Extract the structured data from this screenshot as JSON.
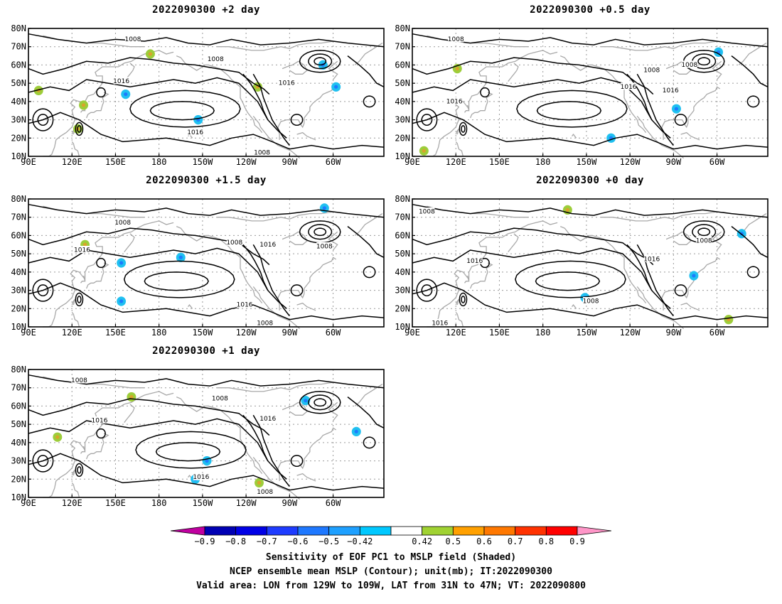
{
  "panels": [
    {
      "title": "2022090300 +2 day",
      "contour_labels": [
        "1008",
        "1008",
        "1016",
        "1016",
        "1016",
        "1008"
      ],
      "anomalies": [
        {
          "lon": 128,
          "lat": 38,
          "sign": "pos"
        },
        {
          "lon": 174,
          "lat": 66,
          "sign": "pos"
        },
        {
          "lon": 124,
          "lat": 25,
          "sign": "pos"
        },
        {
          "lon": 97,
          "lat": 46,
          "sign": "pos"
        },
        {
          "lon": 248,
          "lat": 48,
          "sign": "pos"
        },
        {
          "lon": 293,
          "lat": 60,
          "sign": "neg"
        },
        {
          "lon": 207,
          "lat": 30,
          "sign": "neg"
        },
        {
          "lon": 157,
          "lat": 44,
          "sign": "neg"
        },
        {
          "lon": 302,
          "lat": 48,
          "sign": "neg"
        }
      ]
    },
    {
      "title": "2022090300 +0.5 day",
      "contour_labels": [
        "1008",
        "1008",
        "1016",
        "1016",
        "1008",
        "1016"
      ],
      "anomalies": [
        {
          "lon": 98,
          "lat": 13,
          "sign": "pos"
        },
        {
          "lon": 227,
          "lat": 20,
          "sign": "neg"
        },
        {
          "lon": 301,
          "lat": 67,
          "sign": "neg"
        },
        {
          "lon": 272,
          "lat": 36,
          "sign": "neg"
        },
        {
          "lon": 121,
          "lat": 58,
          "sign": "pos"
        }
      ]
    },
    {
      "title": "2022090300 +1.5 day",
      "contour_labels": [
        "1008",
        "1008",
        "1016",
        "1016",
        "1016",
        "1008",
        "1008"
      ],
      "anomalies": [
        {
          "lon": 294,
          "lat": 75,
          "sign": "neg"
        },
        {
          "lon": 195,
          "lat": 48,
          "sign": "neg"
        },
        {
          "lon": 154,
          "lat": 45,
          "sign": "neg"
        },
        {
          "lon": 154,
          "lat": 24,
          "sign": "neg"
        },
        {
          "lon": 129,
          "lat": 55,
          "sign": "pos"
        }
      ]
    },
    {
      "title": "2022090300 +0 day",
      "contour_labels": [
        "1008",
        "1008",
        "1016",
        "1016",
        "1008",
        "1016"
      ],
      "anomalies": [
        {
          "lon": 197,
          "lat": 74,
          "sign": "pos"
        },
        {
          "lon": 308,
          "lat": 14,
          "sign": "pos"
        },
        {
          "lon": 317,
          "lat": 61,
          "sign": "neg"
        },
        {
          "lon": 209,
          "lat": 26,
          "sign": "neg"
        },
        {
          "lon": 284,
          "lat": 38,
          "sign": "neg"
        }
      ]
    },
    {
      "title": "2022090300 +1 day",
      "contour_labels": [
        "1008",
        "1008",
        "1016",
        "1016",
        "1016",
        "1008"
      ],
      "anomalies": [
        {
          "lon": 110,
          "lat": 43,
          "sign": "pos"
        },
        {
          "lon": 161,
          "lat": 65,
          "sign": "pos"
        },
        {
          "lon": 213,
          "lat": 30,
          "sign": "neg"
        },
        {
          "lon": 205,
          "lat": 20,
          "sign": "neg"
        },
        {
          "lon": 281,
          "lat": 63,
          "sign": "neg"
        },
        {
          "lon": 249,
          "lat": 18,
          "sign": "pos"
        },
        {
          "lon": 316,
          "lat": 46,
          "sign": "neg"
        }
      ]
    }
  ],
  "axes": {
    "lon_labels": [
      "90E",
      "120E",
      "150E",
      "180",
      "150W",
      "120W",
      "90W",
      "60W"
    ],
    "lat_labels": [
      "80N",
      "70N",
      "60N",
      "50N",
      "40N",
      "30N",
      "20N",
      "10N"
    ],
    "lon_range": [
      90,
      335
    ],
    "lat_range": [
      10,
      80
    ]
  },
  "colorbar": {
    "colors": [
      "#c000a0",
      "#0000b4",
      "#0000e6",
      "#1e3cff",
      "#1e78ff",
      "#1ea0ff",
      "#00c8ff",
      "#ffffff",
      "#a0d232",
      "#ffa000",
      "#ff7800",
      "#ff3200",
      "#ff0000",
      "#ff96c8"
    ],
    "labels": [
      "−0.9",
      "−0.8",
      "−0.7",
      "−0.6",
      "−0.5",
      "−0.42",
      "0.42",
      "0.5",
      "0.6",
      "0.7",
      "0.8",
      "0.9"
    ]
  },
  "caption_lines": [
    "Sensitivity of EOF PC1 to MSLP field (Shaded)",
    "NCEP ensemble mean MSLP (Contour); unit(mb); IT:2022090300",
    "Valid area: LON from 129W to 109W, LAT from 31N to 47N; VT: 2022090800"
  ],
  "colors": {
    "positive_shade": "#9dcd3a",
    "positive_core": "#e59a2a",
    "negative_shade": "#20c0f0",
    "negative_core": "#1e6eff",
    "coast": "#a9a9a9",
    "contour": "#000000"
  }
}
